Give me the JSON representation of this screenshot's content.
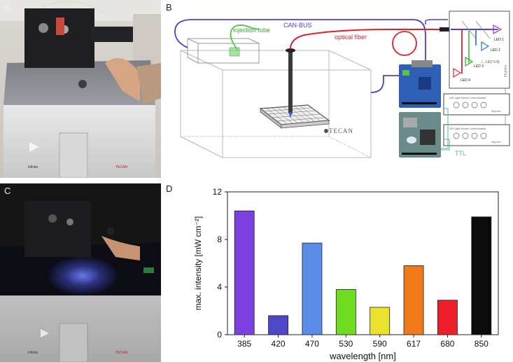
{
  "panels": {
    "a": "A",
    "b": "B",
    "c": "C",
    "d": "D"
  },
  "diagram": {
    "can_bus": "CAN-BUS",
    "injection_tube": "injection tube",
    "optical_fiber": "optical fiber",
    "tecan": "TECAN",
    "ttl": "TTL",
    "leds": [
      "LED 1",
      "LED 2",
      "LED 3",
      "LED 4",
      "(...LED 5-8)"
    ],
    "brand": "Mightex",
    "driver_label": "LED Light Source Control Module"
  },
  "photo_labels": {
    "tecan_a": "TECAN",
    "tecan_c": "TECAN",
    "infinite_a": "infinite",
    "infinite_c": "infinite"
  },
  "colors": {
    "can_bus": "#4a3fd0",
    "injection_tube": "#59c24a",
    "optical_fiber": "#e0202a",
    "ttl": "#58b8a0"
  },
  "chart_data": {
    "type": "bar",
    "categories": [
      "385",
      "420",
      "470",
      "530",
      "590",
      "617",
      "680",
      "850"
    ],
    "values": [
      10.4,
      1.6,
      7.7,
      3.8,
      2.3,
      5.8,
      2.9,
      9.9
    ],
    "colors": [
      "#7c3fe0",
      "#4d48c8",
      "#5b8ce8",
      "#6fdc22",
      "#eae22e",
      "#f07a1a",
      "#ee1e2a",
      "#0b0b0b"
    ],
    "xlabel": "wavelength [nm]",
    "ylabel": "max. intensity [mW cm⁻²]",
    "ylim": [
      0,
      12
    ],
    "yticks": [
      0,
      4,
      8,
      12
    ],
    "grid": false
  }
}
